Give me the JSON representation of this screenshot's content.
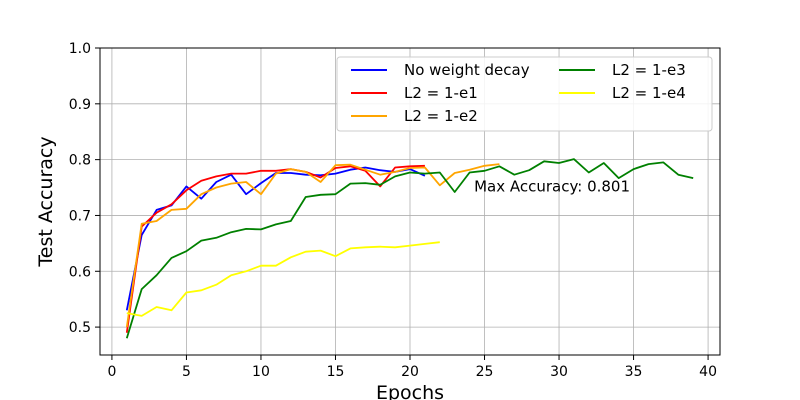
{
  "chart_data": {
    "type": "line",
    "xlabel": "Epochs",
    "ylabel": "Test Accuracy",
    "xlim": [
      -0.8,
      40.8
    ],
    "ylim": [
      0.45,
      1.0
    ],
    "xticks": [
      0,
      5,
      10,
      15,
      20,
      25,
      30,
      35,
      40
    ],
    "yticks": [
      0.5,
      0.6,
      0.7,
      0.8,
      0.9,
      1.0
    ],
    "xtick_labels": [
      "0",
      "5",
      "10",
      "15",
      "20",
      "25",
      "30",
      "35",
      "40"
    ],
    "ytick_labels": [
      "0.5",
      "0.6",
      "0.7",
      "0.8",
      "0.9",
      "1.0"
    ],
    "grid": true,
    "legend_position": "top-right",
    "annotation": {
      "text": "Max Accuracy: 0.801",
      "x": 24.3,
      "y": 0.752
    },
    "series": [
      {
        "name": "No weight decay",
        "color": "#0000ff",
        "x": [
          1,
          2,
          3,
          4,
          5,
          6,
          7,
          8,
          9,
          10,
          11,
          12,
          13,
          14,
          15,
          16,
          17,
          18,
          19,
          20,
          21
        ],
        "y": [
          0.53,
          0.665,
          0.71,
          0.718,
          0.752,
          0.73,
          0.76,
          0.773,
          0.738,
          0.758,
          0.776,
          0.776,
          0.773,
          0.772,
          0.775,
          0.782,
          0.786,
          0.781,
          0.778,
          0.783,
          0.771
        ]
      },
      {
        "name": "L2 = 1-e1",
        "color": "#ff0000",
        "x": [
          1,
          2,
          3,
          4,
          5,
          6,
          7,
          8,
          9,
          10,
          11,
          12,
          13,
          14,
          15,
          16,
          17,
          18,
          19,
          20,
          21
        ],
        "y": [
          0.49,
          0.68,
          0.705,
          0.72,
          0.745,
          0.762,
          0.77,
          0.775,
          0.775,
          0.78,
          0.78,
          0.783,
          0.778,
          0.768,
          0.785,
          0.788,
          0.78,
          0.752,
          0.786,
          0.788,
          0.789
        ]
      },
      {
        "name": "L2 = 1-e2",
        "color": "#ffa500",
        "x": [
          1,
          2,
          3,
          4,
          5,
          6,
          7,
          8,
          9,
          10,
          11,
          12,
          13,
          14,
          15,
          16,
          17,
          18,
          19,
          20,
          21,
          22,
          23,
          24,
          25,
          26
        ],
        "y": [
          0.5,
          0.685,
          0.69,
          0.71,
          0.712,
          0.738,
          0.75,
          0.757,
          0.76,
          0.738,
          0.775,
          0.783,
          0.778,
          0.76,
          0.79,
          0.791,
          0.782,
          0.773,
          0.778,
          0.785,
          0.786,
          0.754,
          0.776,
          0.782,
          0.789,
          0.792
        ]
      },
      {
        "name": "L2 = 1-e3",
        "color": "#008000",
        "x": [
          1,
          2,
          3,
          4,
          5,
          6,
          7,
          8,
          9,
          10,
          11,
          12,
          13,
          14,
          15,
          16,
          17,
          18,
          19,
          20,
          21,
          22,
          23,
          24,
          25,
          26,
          27,
          28,
          29,
          30,
          31,
          32,
          33,
          34,
          35,
          36,
          37,
          38,
          39
        ],
        "y": [
          0.48,
          0.568,
          0.593,
          0.624,
          0.636,
          0.655,
          0.66,
          0.67,
          0.676,
          0.675,
          0.684,
          0.69,
          0.733,
          0.737,
          0.738,
          0.757,
          0.758,
          0.755,
          0.77,
          0.777,
          0.775,
          0.777,
          0.742,
          0.777,
          0.78,
          0.788,
          0.773,
          0.781,
          0.797,
          0.794,
          0.801,
          0.777,
          0.794,
          0.767,
          0.783,
          0.792,
          0.795,
          0.773,
          0.767
        ]
      },
      {
        "name": "L2 = 1-e4",
        "color": "#ffff00",
        "x": [
          1,
          2,
          3,
          4,
          5,
          6,
          7,
          8,
          9,
          10,
          11,
          12,
          13,
          14,
          15,
          16,
          17,
          18,
          19,
          20,
          21,
          22
        ],
        "y": [
          0.525,
          0.52,
          0.536,
          0.53,
          0.562,
          0.566,
          0.576,
          0.593,
          0.6,
          0.61,
          0.61,
          0.625,
          0.635,
          0.637,
          0.627,
          0.641,
          0.643,
          0.644,
          0.643,
          0.646,
          0.649,
          0.652
        ]
      }
    ]
  }
}
